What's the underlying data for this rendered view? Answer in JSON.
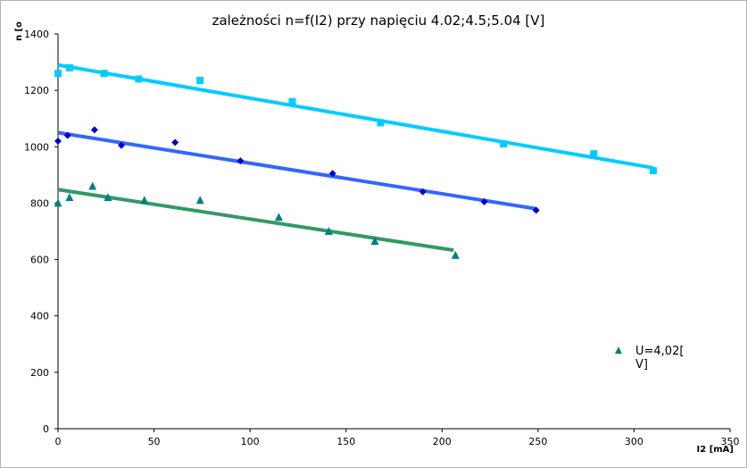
{
  "chart_data": {
    "type": "scatter",
    "title": "zależności n=f(I2) przy napięciu 4.02;4.5;5.04 [V]",
    "xlabel": "I2 [mA]",
    "ylabel": "n [o",
    "xlim": [
      0,
      350
    ],
    "ylim": [
      0,
      1400
    ],
    "x_ticks": [
      0,
      50,
      100,
      150,
      200,
      250,
      300,
      350
    ],
    "y_ticks": [
      0,
      200,
      400,
      600,
      800,
      1000,
      1200,
      1400
    ],
    "grid": false,
    "legend_position": "right",
    "legend": [
      {
        "label_line1": "U=4,02[",
        "label_line2": "V]",
        "color": "#008080",
        "marker": "triangle"
      }
    ],
    "series": [
      {
        "name": "U=4,02[V]",
        "color": "#008080",
        "marker": "triangle",
        "x": [
          0,
          6,
          18,
          26,
          45,
          74,
          115,
          141,
          165,
          207
        ],
        "y": [
          800,
          820,
          860,
          820,
          810,
          810,
          750,
          700,
          665,
          615
        ],
        "trend": {
          "color": "#339966",
          "x": [
            0,
            206
          ],
          "y": [
            848,
            633
          ]
        }
      },
      {
        "color": "#0000cc",
        "marker": "diamond",
        "x": [
          0,
          5,
          19,
          33,
          61,
          95,
          143,
          190,
          222,
          249
        ],
        "y": [
          1020,
          1040,
          1060,
          1005,
          1015,
          950,
          905,
          840,
          805,
          775
        ],
        "trend": {
          "color": "#3366ff",
          "x": [
            0,
            249
          ],
          "y": [
            1050,
            780
          ]
        }
      },
      {
        "color": "#00ccff",
        "marker": "square",
        "x": [
          0,
          6,
          24,
          42,
          74,
          122,
          168,
          232,
          279,
          310
        ],
        "y": [
          1260,
          1280,
          1260,
          1240,
          1235,
          1160,
          1085,
          1010,
          975,
          915
        ],
        "trend": {
          "color": "#00ccff",
          "x": [
            0,
            310
          ],
          "y": [
            1290,
            925
          ]
        }
      }
    ]
  }
}
